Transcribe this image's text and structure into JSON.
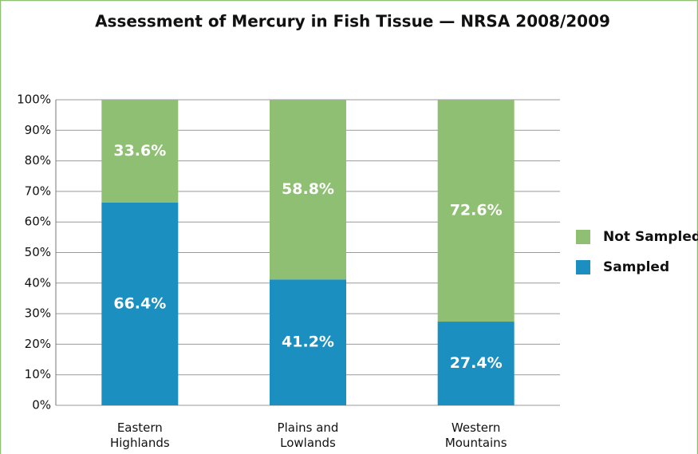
{
  "chart_data": {
    "type": "stacked_bar",
    "title": "Assessment of Mercury in Fish Tissue — NRSA 2008/2009",
    "categories": [
      "Eastern Highlands",
      "Plains and Lowlands",
      "Western Mountains"
    ],
    "series": [
      {
        "name": "Sampled",
        "color": "#1b8fbf",
        "values": [
          66.4,
          41.2,
          27.4
        ],
        "value_labels": [
          "66.4%",
          "41.2%",
          "27.4%"
        ]
      },
      {
        "name": "Not Sampled",
        "color": "#8fbf72",
        "values": [
          33.6,
          58.8,
          72.6
        ],
        "value_labels": [
          "33.6%",
          "58.8%",
          "72.6%"
        ]
      }
    ],
    "ylim": [
      0,
      100
    ],
    "yticks": [
      {
        "value": 0,
        "label": "0%"
      },
      {
        "value": 10,
        "label": "10%"
      },
      {
        "value": 20,
        "label": "20%"
      },
      {
        "value": 30,
        "label": "30%"
      },
      {
        "value": 40,
        "label": "40%"
      },
      {
        "value": 50,
        "label": "50%"
      },
      {
        "value": 60,
        "label": "60%"
      },
      {
        "value": 70,
        "label": "70%"
      },
      {
        "value": 80,
        "label": "80%"
      },
      {
        "value": 90,
        "label": "90%"
      },
      {
        "value": 100,
        "label": "100%"
      }
    ],
    "grid": true,
    "legend": "right"
  }
}
